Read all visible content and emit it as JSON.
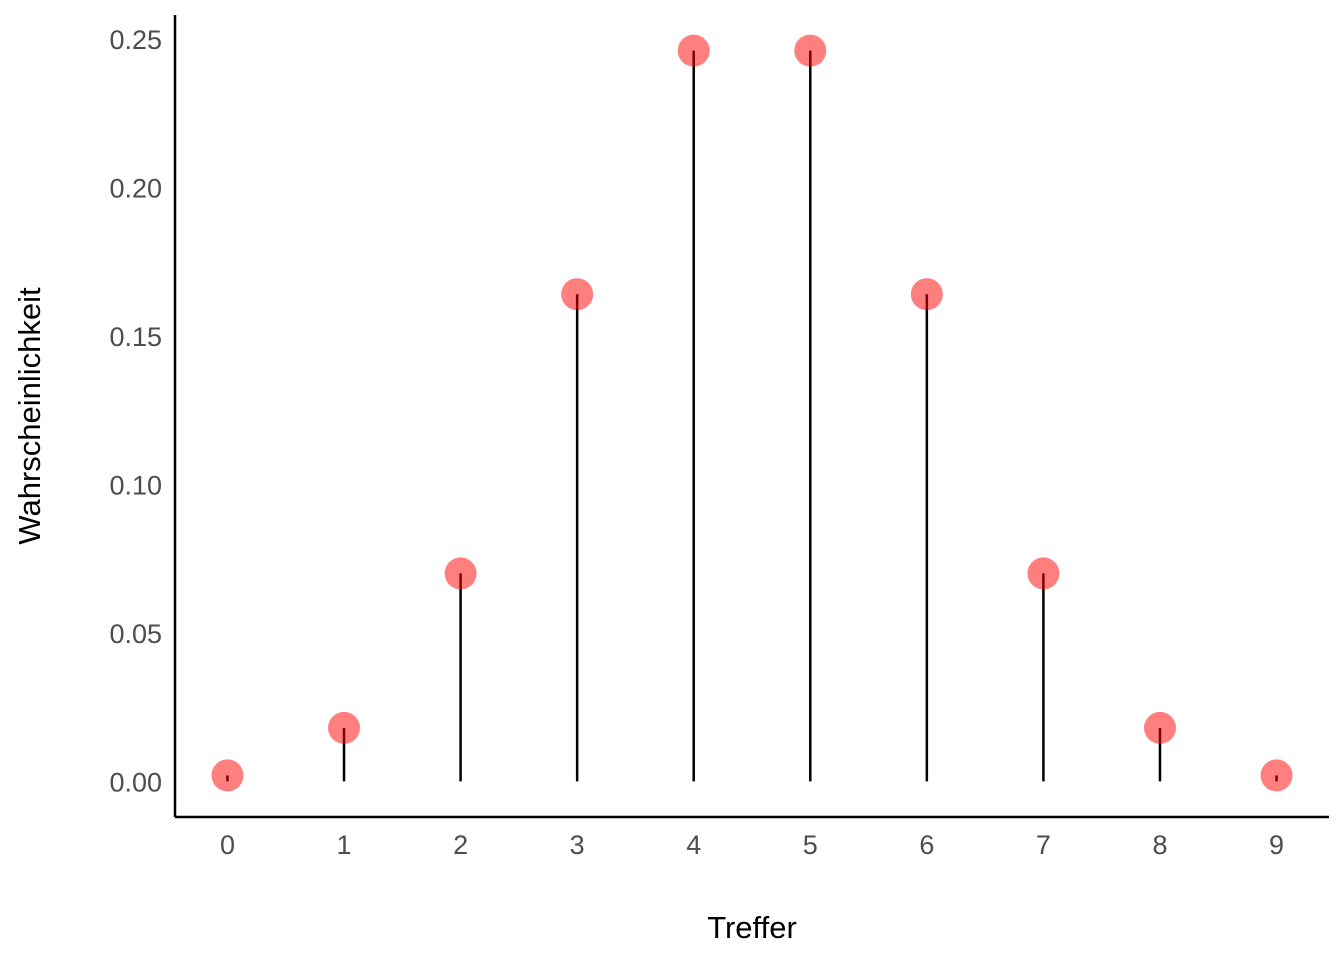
{
  "chart_data": {
    "type": "stem",
    "xlabel": "Treffer",
    "ylabel": "Wahrscheinlichkeit",
    "x": [
      0,
      1,
      2,
      3,
      4,
      5,
      6,
      7,
      8,
      9
    ],
    "values": [
      0.002,
      0.018,
      0.07,
      0.164,
      0.246,
      0.246,
      0.164,
      0.07,
      0.018,
      0.002
    ],
    "xticks": [
      "0",
      "1",
      "2",
      "3",
      "4",
      "5",
      "6",
      "7",
      "8",
      "9"
    ],
    "yticks": [
      "0.00",
      "0.05",
      "0.10",
      "0.15",
      "0.20",
      "0.25"
    ],
    "ylim": [
      -0.012,
      0.258
    ],
    "xlim": [
      -0.45,
      9.45
    ],
    "grid": false,
    "legend": "none",
    "colors": {
      "point": "#ff0000",
      "stem": "#000000",
      "axis": "#000000",
      "tick_text": "#4d4d4d"
    }
  }
}
